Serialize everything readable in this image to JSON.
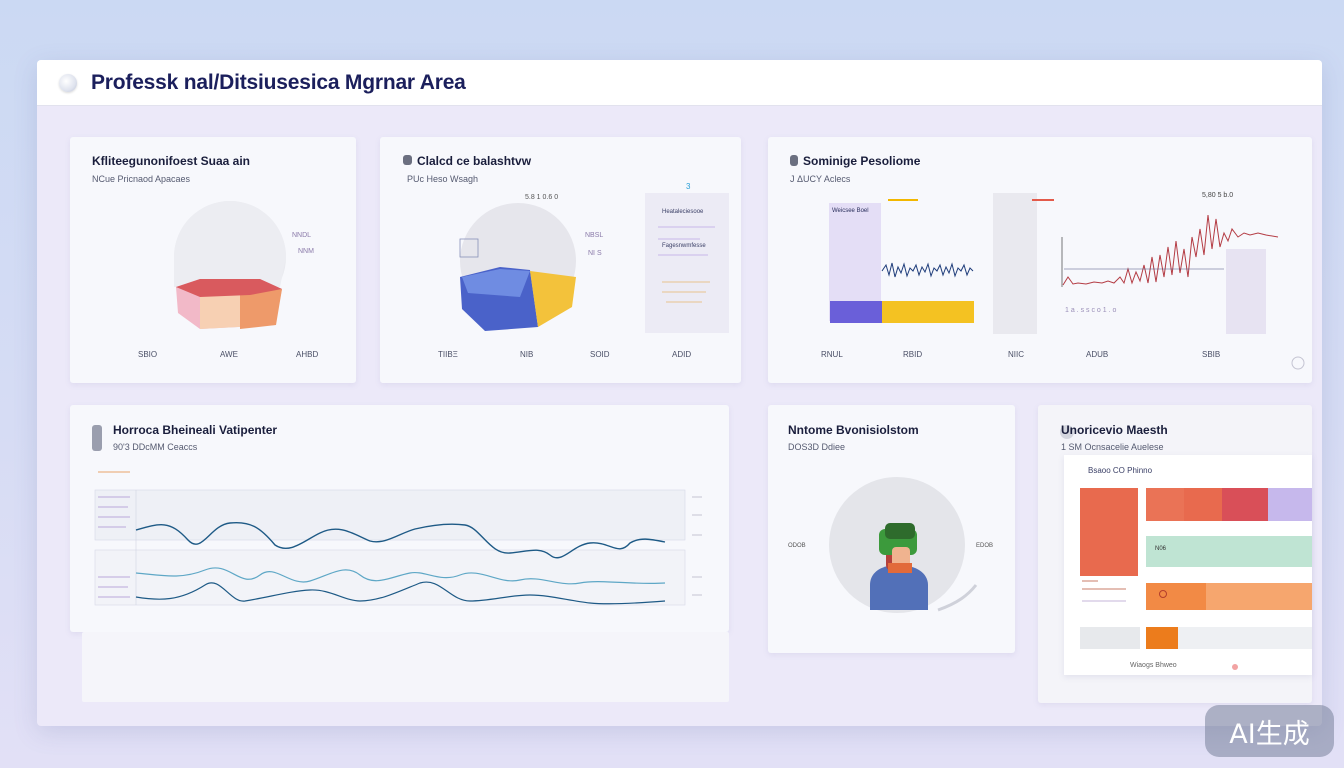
{
  "app": {
    "title": "Professk nal/Ditsiusesica Mgrnar Area"
  },
  "cards": {
    "c1": {
      "title": "Kfliteegunonifoest Suaa ain",
      "subtitle": "NCue Pricnaod  Apacaes",
      "ticks": [
        "SBIO",
        "AWE",
        "AHBD"
      ],
      "slices": [
        {
          "color": "#e4e6ec",
          "fraction": 0.45
        },
        {
          "color": "#f2b9c8",
          "fraction": 0.2
        },
        {
          "color": "#f7d0b3",
          "fraction": 0.2
        },
        {
          "color": "#ee9a6a",
          "fraction": 0.15
        }
      ]
    },
    "c2": {
      "title": "Clalcd ce balashtvw",
      "subtitle": "PUc Heso Wsagh",
      "ticks": [
        "TIIBΞ",
        "NIB",
        "SOID",
        "ADID"
      ],
      "side_labels": [
        "Heataleciesooe",
        "Fagesnwmfesse"
      ],
      "slices": [
        {
          "color": "#e6e6ec",
          "fraction": 0.5
        },
        {
          "color": "#5a78d8",
          "fraction": 0.3
        },
        {
          "color": "#f3c23b",
          "fraction": 0.2
        }
      ]
    },
    "c3": {
      "title": "Sominige Pesoliome",
      "subtitle": "J ΔUCY Aclecs",
      "ticks": [
        "RNUL",
        "RBID",
        "NIIC",
        "ADUB",
        "SBIB"
      ],
      "legend_label": "Weicsee Boel",
      "bar_colors": [
        "#6a5fd9",
        "#f4c222"
      ]
    },
    "c4": {
      "title": "Horroca Bheineali Vatipenter",
      "subtitle": "90'3 DDcMM Ceaccs",
      "series_colors": [
        "#1e5a86",
        "#5ea7c6"
      ]
    },
    "c5": {
      "title": "Nntome Bvonisiolstom",
      "subtitle": "DOS3D Ddiee",
      "side_left": "ODOB",
      "side_right": "EDOB"
    },
    "c6": {
      "title": "Unoricevio Maesth",
      "subtitle": "1 SM Ocnsacelie Auelese",
      "legend": "Bsaoo  CO  Phinno",
      "footer": "Wiaogs Bhweo",
      "blocks": [
        {
          "color": "#e86a4e"
        },
        {
          "color": "#f0795a"
        },
        {
          "color": "#c8c9f0"
        },
        {
          "color": "#a6dcc5"
        },
        {
          "color": "#f28a45"
        },
        {
          "color": "#ec7c1c"
        }
      ]
    }
  },
  "badge": {
    "text": "AI生成"
  }
}
